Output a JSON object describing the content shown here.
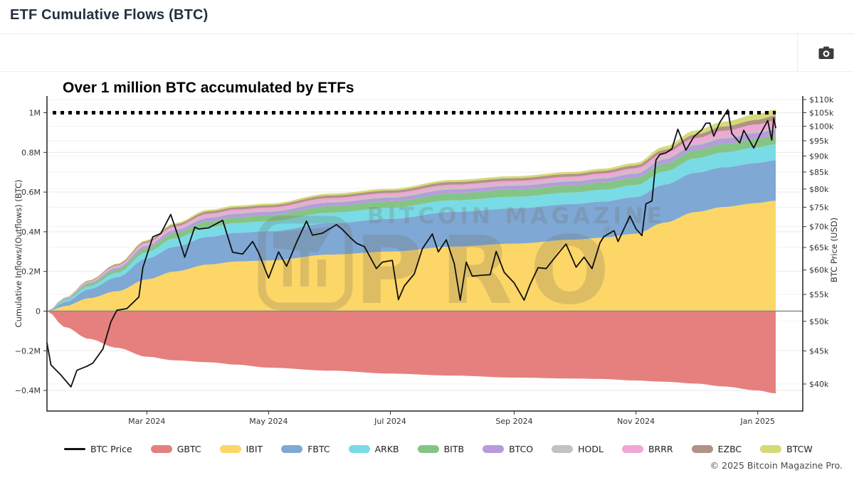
{
  "header": {
    "title": "ETF Cumulative Flows (BTC)"
  },
  "toolbar": {
    "screenshot_tooltip": "Download snapshot"
  },
  "watermark": {
    "line1": "BITCOIN MAGAZINE",
    "line2": "PRO",
    "registered": "®"
  },
  "footer": {
    "copyright": "© 2025 Bitcoin Magazine Pro."
  },
  "legend": {
    "items": [
      {
        "label": "BTC Price",
        "type": "line",
        "color": "#111111"
      },
      {
        "label": "GBTC",
        "type": "area",
        "color": "#e5807e"
      },
      {
        "label": "IBIT",
        "type": "area",
        "color": "#fcd667"
      },
      {
        "label": "FBTC",
        "type": "area",
        "color": "#7fa8d4"
      },
      {
        "label": "ARKB",
        "type": "area",
        "color": "#79dbe5"
      },
      {
        "label": "BITB",
        "type": "area",
        "color": "#84c586"
      },
      {
        "label": "BTCO",
        "type": "area",
        "color": "#b79bdc"
      },
      {
        "label": "HODL",
        "type": "area",
        "color": "#c2c2c2"
      },
      {
        "label": "BRRR",
        "type": "area",
        "color": "#f0a6d6"
      },
      {
        "label": "EZBC",
        "type": "area",
        "color": "#b09387"
      },
      {
        "label": "BTCW",
        "type": "area",
        "color": "#d5da78"
      }
    ]
  },
  "chart_data": {
    "type": "area",
    "title": "Over 1 million BTC accumulated by ETFs",
    "left_axis": {
      "label": "Cumulative Inflows/(Outflows) (BTC)",
      "tick_values_m": [
        1,
        0.8,
        0.6,
        0.4,
        0.2,
        0,
        -0.2,
        -0.4
      ],
      "tick_labels": [
        "1M",
        "0.8M",
        "0.6M",
        "0.4M",
        "0.2M",
        "0",
        "−0.2M",
        "−0.4M"
      ]
    },
    "right_axis": {
      "label": "BTC Price (USD)",
      "scale": "log",
      "tick_values_k": [
        110,
        105,
        100,
        95,
        90,
        85,
        80,
        75,
        70,
        65,
        60,
        55,
        50,
        45,
        40
      ],
      "tick_labels": [
        "$110k",
        "$105k",
        "$100k",
        "$95k",
        "$90k",
        "$85k",
        "$80k",
        "$75k",
        "$70k",
        "$65k",
        "$60k",
        "$55k",
        "$50k",
        "$45k",
        "$40k"
      ]
    },
    "x_axis": {
      "start_date": "2024-01-11",
      "end_date": "2025-01-10",
      "ticks": [
        {
          "label": "Mar 2024",
          "date": "2024-03-01"
        },
        {
          "label": "May 2024",
          "date": "2024-05-01"
        },
        {
          "label": "Jul 2024",
          "date": "2024-07-01"
        },
        {
          "label": "Sep 2024",
          "date": "2024-09-01"
        },
        {
          "label": "Nov 2024",
          "date": "2024-11-01"
        },
        {
          "label": "Jan 2025",
          "date": "2025-01-01"
        }
      ]
    },
    "annotation_line": {
      "value_m": 1.0,
      "style": "dotted",
      "color": "#000000"
    },
    "flows_kbtc": {
      "dates": [
        "2024-01-11",
        "2024-01-20",
        "2024-02-01",
        "2024-02-15",
        "2024-03-01",
        "2024-03-15",
        "2024-04-01",
        "2024-04-15",
        "2024-05-01",
        "2024-06-01",
        "2024-07-01",
        "2024-08-01",
        "2024-09-01",
        "2024-10-01",
        "2024-10-15",
        "2024-11-01",
        "2024-11-15",
        "2024-12-01",
        "2024-12-15",
        "2025-01-01",
        "2025-01-10"
      ],
      "series": [
        {
          "name": "GBTC",
          "color": "#e5807e",
          "values": [
            0,
            -80,
            -140,
            -185,
            -230,
            -248,
            -258,
            -270,
            -285,
            -300,
            -315,
            -325,
            -335,
            -340,
            -342,
            -350,
            -356,
            -365,
            -380,
            -400,
            -415
          ]
        },
        {
          "name": "IBIT",
          "color": "#fcd667",
          "values": [
            0,
            25,
            65,
            100,
            160,
            200,
            235,
            250,
            255,
            285,
            300,
            325,
            340,
            360,
            370,
            390,
            445,
            500,
            525,
            545,
            557
          ]
        },
        {
          "name": "FBTC",
          "color": "#7fa8d4",
          "values": [
            0,
            20,
            45,
            70,
            105,
            125,
            140,
            145,
            148,
            158,
            165,
            175,
            178,
            180,
            182,
            185,
            192,
            198,
            200,
            202,
            204
          ]
        },
        {
          "name": "ARKB",
          "color": "#79dbe5",
          "values": [
            0,
            8,
            15,
            22,
            32,
            42,
            48,
            49,
            50,
            53,
            55,
            58,
            58,
            58,
            59,
            60,
            66,
            72,
            75,
            78,
            80
          ]
        },
        {
          "name": "BITB",
          "color": "#84c586",
          "values": [
            0,
            6,
            12,
            17,
            22,
            27,
            30,
            30,
            31,
            33,
            34,
            36,
            37,
            37,
            38,
            38,
            40,
            42,
            43,
            44,
            45
          ]
        },
        {
          "name": "BTCO",
          "color": "#b79bdc",
          "values": [
            0,
            3,
            6,
            9,
            12,
            15,
            17,
            17,
            17,
            18,
            18,
            19,
            19,
            19,
            19,
            20,
            22,
            25,
            27,
            29,
            30
          ]
        },
        {
          "name": "HODL",
          "color": "#c2c2c2",
          "values": [
            0,
            1,
            3,
            4,
            6,
            7,
            8,
            8,
            8,
            9,
            9,
            9,
            9,
            9,
            9,
            10,
            10,
            10,
            10,
            10,
            10
          ]
        },
        {
          "name": "BRRR",
          "color": "#f0a6d6",
          "values": [
            0,
            2,
            4,
            7,
            9,
            11,
            13,
            13,
            13,
            14,
            14,
            15,
            15,
            15,
            16,
            17,
            21,
            25,
            29,
            33,
            35
          ]
        },
        {
          "name": "EZBC",
          "color": "#b09387",
          "values": [
            0,
            2,
            4,
            6,
            8,
            10,
            12,
            12,
            12,
            13,
            13,
            14,
            14,
            14,
            14,
            15,
            17,
            19,
            22,
            24,
            25
          ]
        },
        {
          "name": "BTCW",
          "color": "#d5da78",
          "values": [
            0,
            1,
            2,
            4,
            5,
            7,
            8,
            8,
            8,
            9,
            9,
            10,
            10,
            10,
            11,
            12,
            16,
            20,
            24,
            28,
            30
          ]
        }
      ]
    },
    "price_usd_k": {
      "name": "BTC Price",
      "color": "#101010",
      "dates": [
        "2024-01-11",
        "2024-01-13",
        "2024-01-18",
        "2024-01-23",
        "2024-01-26",
        "2024-01-31",
        "2024-02-03",
        "2024-02-08",
        "2024-02-12",
        "2024-02-15",
        "2024-02-20",
        "2024-02-26",
        "2024-02-28",
        "2024-03-04",
        "2024-03-08",
        "2024-03-13",
        "2024-03-17",
        "2024-03-20",
        "2024-03-25",
        "2024-03-27",
        "2024-04-01",
        "2024-04-08",
        "2024-04-13",
        "2024-04-18",
        "2024-04-23",
        "2024-04-26",
        "2024-05-01",
        "2024-05-06",
        "2024-05-10",
        "2024-05-15",
        "2024-05-20",
        "2024-05-23",
        "2024-05-28",
        "2024-06-04",
        "2024-06-07",
        "2024-06-11",
        "2024-06-14",
        "2024-06-18",
        "2024-06-24",
        "2024-06-27",
        "2024-07-02",
        "2024-07-05",
        "2024-07-08",
        "2024-07-13",
        "2024-07-17",
        "2024-07-22",
        "2024-07-25",
        "2024-07-29",
        "2024-08-02",
        "2024-08-05",
        "2024-08-08",
        "2024-08-11",
        "2024-08-16",
        "2024-08-20",
        "2024-08-23",
        "2024-08-27",
        "2024-09-01",
        "2024-09-06",
        "2024-09-09",
        "2024-09-13",
        "2024-09-17",
        "2024-09-23",
        "2024-09-27",
        "2024-10-02",
        "2024-10-06",
        "2024-10-10",
        "2024-10-14",
        "2024-10-16",
        "2024-10-21",
        "2024-10-23",
        "2024-10-29",
        "2024-11-01",
        "2024-11-04",
        "2024-11-06",
        "2024-11-09",
        "2024-11-11",
        "2024-11-13",
        "2024-11-16",
        "2024-11-19",
        "2024-11-22",
        "2024-11-26",
        "2024-11-30",
        "2024-12-04",
        "2024-12-06",
        "2024-12-08",
        "2024-12-10",
        "2024-12-13",
        "2024-12-17",
        "2024-12-19",
        "2024-12-23",
        "2024-12-25",
        "2024-12-30",
        "2025-01-02",
        "2025-01-06",
        "2025-01-08",
        "2025-01-09",
        "2025-01-10"
      ],
      "values": [
        46.3,
        42.8,
        41.3,
        39.6,
        42.0,
        42.6,
        43.1,
        45.3,
        49.9,
        52.0,
        52.3,
        54.5,
        60.5,
        67.5,
        68.3,
        73.1,
        67.2,
        62.8,
        69.9,
        69.4,
        69.7,
        71.6,
        63.9,
        63.5,
        66.4,
        63.8,
        58.3,
        64.0,
        60.8,
        66.2,
        71.4,
        67.9,
        68.4,
        70.5,
        69.3,
        67.3,
        66.0,
        65.2,
        60.3,
        61.7,
        62.1,
        54.0,
        56.7,
        59.2,
        64.7,
        68.2,
        64.0,
        66.8,
        61.4,
        53.9,
        61.7,
        58.7,
        58.9,
        59.0,
        64.1,
        59.5,
        57.3,
        53.9,
        57.0,
        60.5,
        60.3,
        63.6,
        65.8,
        60.6,
        62.8,
        60.3,
        66.1,
        67.6,
        69.0,
        66.4,
        72.7,
        69.5,
        67.8,
        75.9,
        76.7,
        88.7,
        90.5,
        91.0,
        92.3,
        99.0,
        91.9,
        96.4,
        98.8,
        101.1,
        101.2,
        96.6,
        101.4,
        106.1,
        97.5,
        94.3,
        98.6,
        92.6,
        96.9,
        102.1,
        95.2,
        103.0,
        99.5
      ]
    }
  }
}
